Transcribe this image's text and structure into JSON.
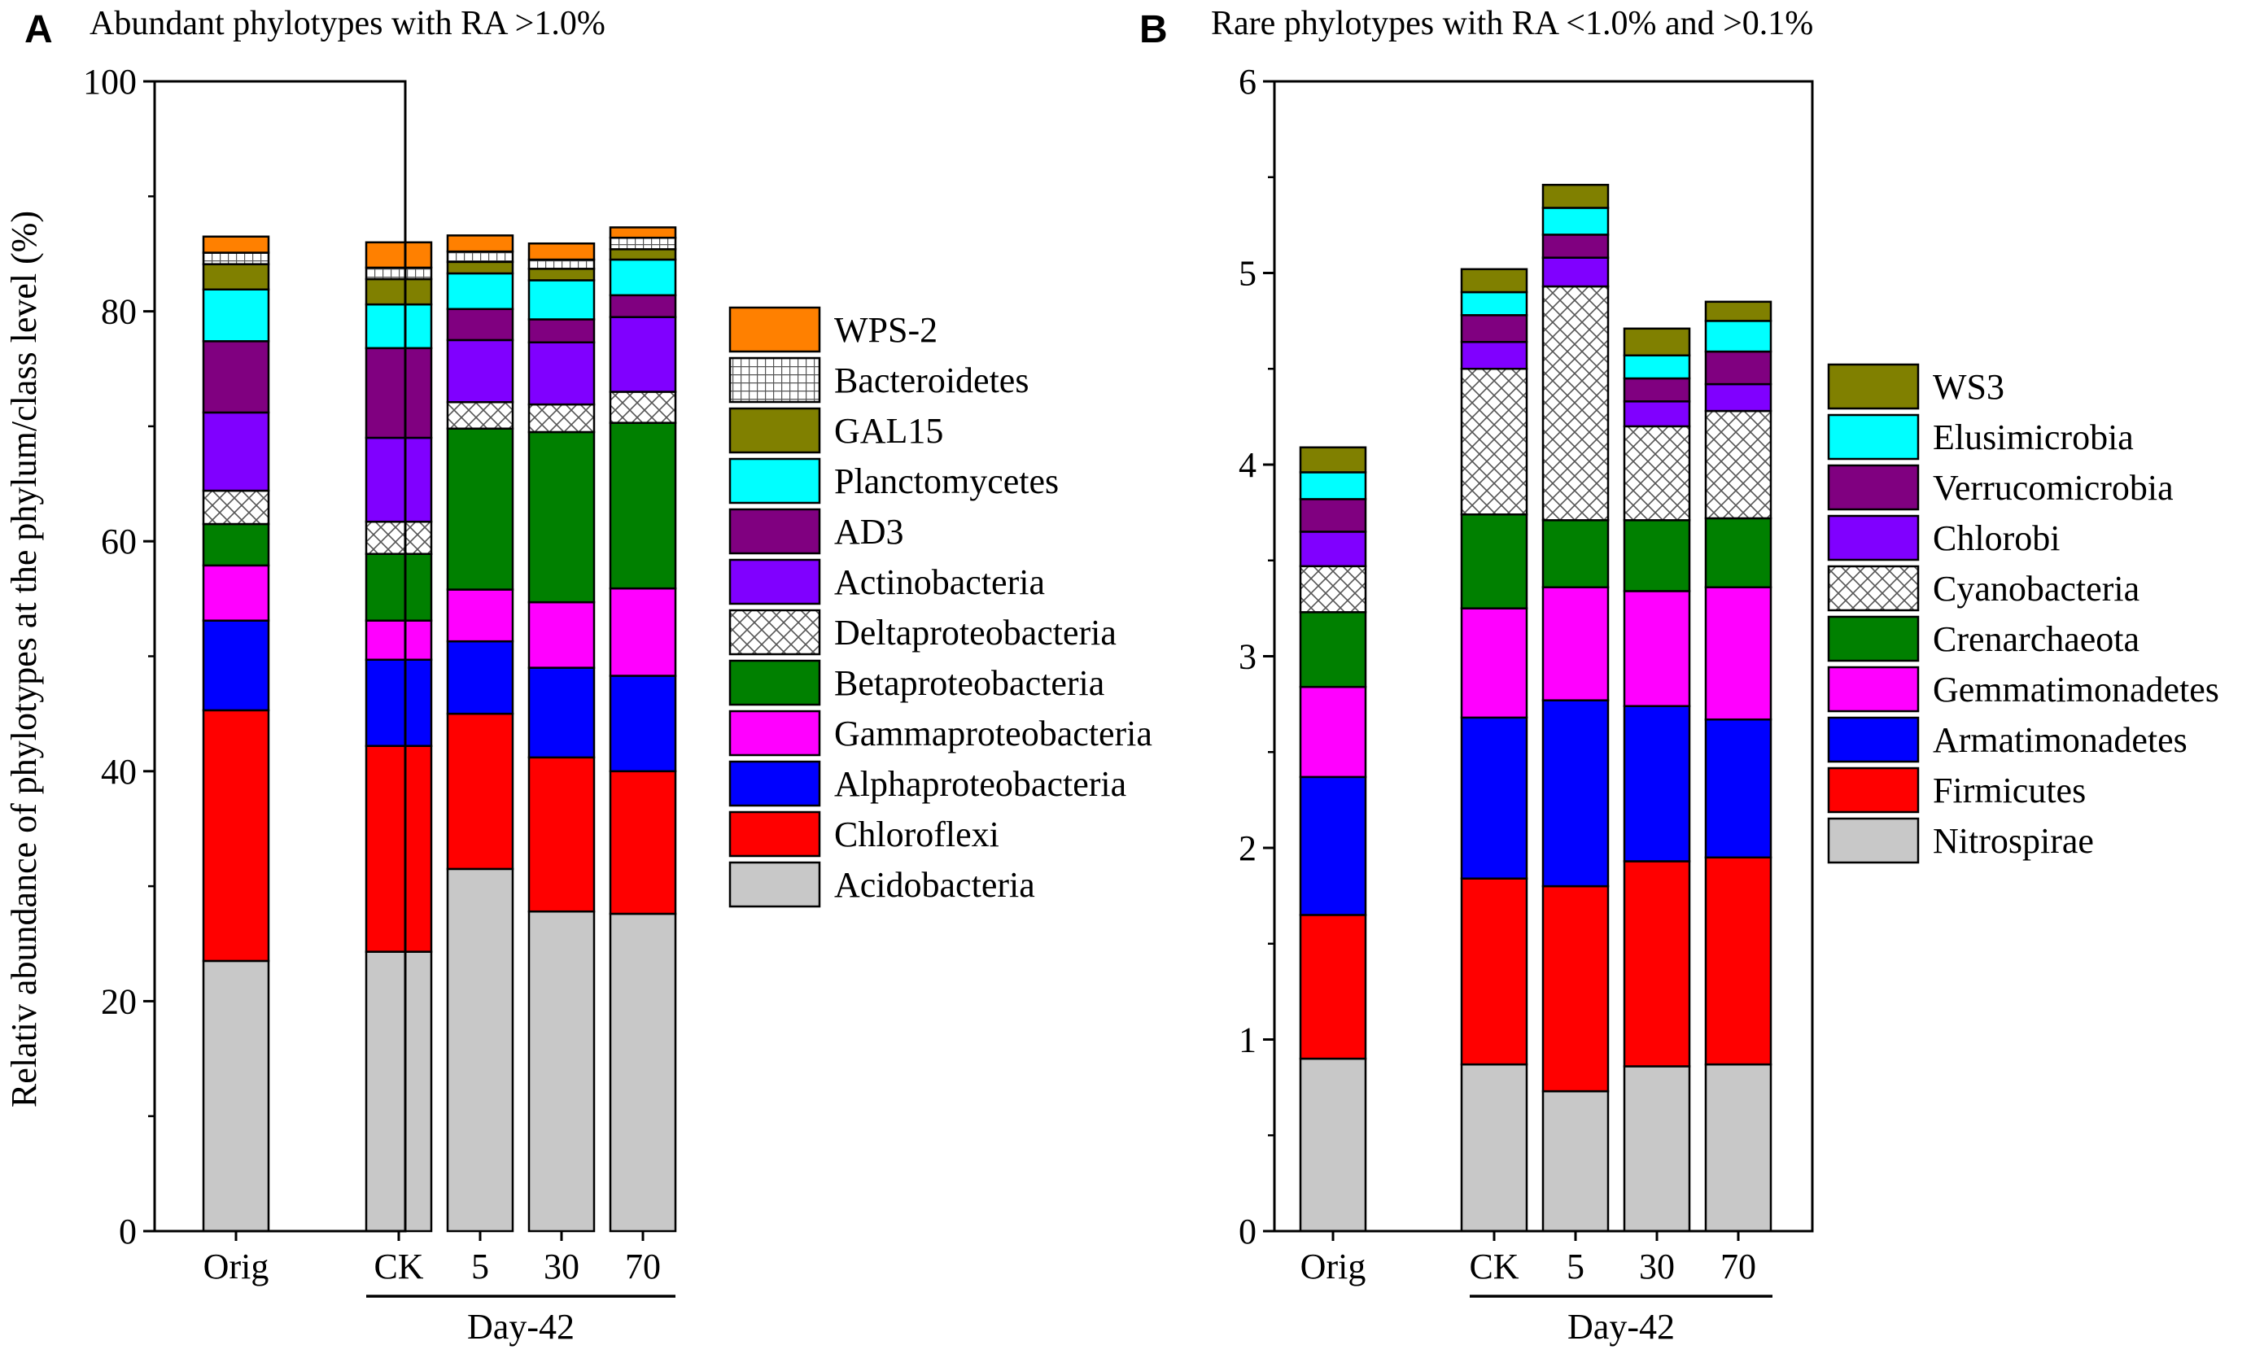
{
  "chart_data": [
    {
      "type": "bar",
      "stacked": true,
      "panel_label": "A",
      "title": "Abundant phylotypes with RA >1.0%",
      "ylabel": "Relativ abundance of phylotypes at the phylum/class level (%)",
      "xlabel": "",
      "ylim": [
        0,
        100
      ],
      "yticks": [
        "0",
        "20",
        "40",
        "60",
        "80",
        "100"
      ],
      "categories": [
        "Orig",
        "CK",
        "5",
        "30",
        "70"
      ],
      "group_label": "Day-42",
      "series": [
        {
          "name": "Acidobacteria",
          "color": "#c8c8c8",
          "pattern": "solid",
          "values": [
            23.5,
            24.3,
            31.5,
            27.8,
            27.6
          ]
        },
        {
          "name": "Chloroflexi",
          "color": "#ff0000",
          "pattern": "solid",
          "values": [
            21.8,
            17.9,
            13.5,
            13.4,
            12.4
          ]
        },
        {
          "name": "Alphaproteobacteria",
          "color": "#0000ff",
          "pattern": "solid",
          "values": [
            7.8,
            7.5,
            6.3,
            7.8,
            8.3
          ]
        },
        {
          "name": "Gammaproteobacteria",
          "color": "#ff00ff",
          "pattern": "solid",
          "values": [
            4.8,
            3.4,
            4.5,
            5.7,
            7.6
          ]
        },
        {
          "name": "Betaproteobacteria",
          "color": "#008000",
          "pattern": "solid",
          "values": [
            3.6,
            5.8,
            14.0,
            14.8,
            14.4
          ]
        },
        {
          "name": "Deltaproteobacteria",
          "color": "#ffffff",
          "pattern": "crosshatch",
          "values": [
            2.9,
            2.8,
            2.3,
            2.4,
            2.7
          ]
        },
        {
          "name": "Actinobacteria",
          "color": "#8000ff",
          "pattern": "solid",
          "values": [
            6.8,
            7.3,
            5.4,
            5.4,
            6.5
          ]
        },
        {
          "name": "AD3",
          "color": "#800080",
          "pattern": "solid",
          "values": [
            6.2,
            7.8,
            2.7,
            2.0,
            1.9
          ]
        },
        {
          "name": "Planctomycetes",
          "color": "#00ffff",
          "pattern": "solid",
          "values": [
            4.5,
            3.8,
            3.1,
            3.4,
            3.1
          ]
        },
        {
          "name": "GAL15",
          "color": "#808000",
          "pattern": "solid",
          "values": [
            2.2,
            2.2,
            1.0,
            1.0,
            0.9
          ]
        },
        {
          "name": "Bacteroidetes",
          "color": "#ffffff",
          "pattern": "grid",
          "values": [
            1.0,
            1.0,
            0.9,
            0.8,
            1.0
          ]
        },
        {
          "name": "WPS-2",
          "color": "#ff8000",
          "pattern": "solid",
          "values": [
            1.4,
            2.2,
            1.4,
            1.4,
            0.9
          ]
        }
      ]
    },
    {
      "type": "bar",
      "stacked": true,
      "panel_label": "B",
      "title": "Rare phylotypes with RA <1.0% and >0.1%",
      "ylabel": "",
      "xlabel": "",
      "ylim": [
        0,
        6
      ],
      "yticks": [
        "0",
        "1",
        "2",
        "3",
        "4",
        "5",
        "6"
      ],
      "categories": [
        "Orig",
        "CK",
        "5",
        "30",
        "70"
      ],
      "group_label": "Day-42",
      "series": [
        {
          "name": "Nitrospirae",
          "color": "#c8c8c8",
          "pattern": "solid",
          "values": [
            0.9,
            0.87,
            0.73,
            0.86,
            0.87
          ]
        },
        {
          "name": "Firmicutes",
          "color": "#ff0000",
          "pattern": "solid",
          "values": [
            0.75,
            0.97,
            1.07,
            1.07,
            1.08
          ]
        },
        {
          "name": "Armatimonadetes",
          "color": "#0000ff",
          "pattern": "solid",
          "values": [
            0.72,
            0.84,
            0.97,
            0.81,
            0.72
          ]
        },
        {
          "name": "Gemmatimonadetes",
          "color": "#ff00ff",
          "pattern": "solid",
          "values": [
            0.47,
            0.57,
            0.59,
            0.6,
            0.69
          ]
        },
        {
          "name": "Crenarchaeota",
          "color": "#008000",
          "pattern": "solid",
          "values": [
            0.39,
            0.49,
            0.35,
            0.37,
            0.36
          ]
        },
        {
          "name": "Cyanobacteria",
          "color": "#ffffff",
          "pattern": "crosshatch",
          "values": [
            0.24,
            0.76,
            1.22,
            0.49,
            0.56
          ]
        },
        {
          "name": "Chlorobi",
          "color": "#8000ff",
          "pattern": "solid",
          "values": [
            0.18,
            0.14,
            0.15,
            0.13,
            0.14
          ]
        },
        {
          "name": "Verrucomicrobia",
          "color": "#800080",
          "pattern": "solid",
          "values": [
            0.17,
            0.14,
            0.12,
            0.12,
            0.17
          ]
        },
        {
          "name": "Elusimicrobia",
          "color": "#00ffff",
          "pattern": "solid",
          "values": [
            0.14,
            0.12,
            0.14,
            0.12,
            0.16
          ]
        },
        {
          "name": "WS3",
          "color": "#808000",
          "pattern": "solid",
          "values": [
            0.13,
            0.12,
            0.12,
            0.14,
            0.1
          ]
        }
      ]
    }
  ]
}
